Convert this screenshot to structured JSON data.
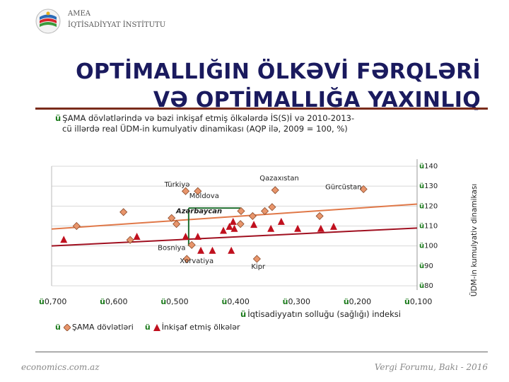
{
  "header": {
    "org_line1": "AMEA",
    "org_line2": "İQTİSADİYYAT İNSTİTUTU"
  },
  "title": {
    "line1": "OPTİMALLIĞIN ÖLKƏVİ FƏRQLƏRİ",
    "line2": "VƏ OPTİMALLIĞA YAXINLIQ"
  },
  "subtitle": {
    "check": "ü",
    "line1": "ŞAMA dövlətlərində və bəzi inkişaf etmiş ölkələrdə İS(S)İ və 2010-2013-",
    "line2": "cü illərdə real ÜDM-in kumulyativ dinamikası (AQP ilə, 2009 = 100, %)"
  },
  "colors": {
    "shama": "#e8956b",
    "shama_border": "#8a4a2a",
    "developed": "#c0101e",
    "trend_shama": "#e07848",
    "trend_developed": "#a01020",
    "guide": "#1e6e2e",
    "grid": "#d8d8d8",
    "check": "#1a7a1a"
  },
  "chart_data": {
    "type": "scatter",
    "xlabel": "İqtisadiyyatın solluğu (sağlığı) indeksi",
    "ylabel": "ÜDM-in kumulyativ dinamikası",
    "x_reversed": true,
    "xlim": [
      0.1,
      0.7
    ],
    "ylim": [
      80,
      140
    ],
    "x_ticks": [
      0.7,
      0.6,
      0.5,
      0.4,
      0.3,
      0.2,
      0.1
    ],
    "x_tick_labels": [
      "0,700",
      "0,600",
      "0,500",
      "0,400",
      "0,300",
      "0,200",
      "0,100"
    ],
    "y_ticks": [
      80,
      90,
      100,
      110,
      120,
      130,
      140
    ],
    "y_tick_labels": [
      "80",
      "90",
      "100",
      "110",
      "120",
      "130",
      "140"
    ],
    "tick_check": "ü",
    "series": [
      {
        "name": "ŞAMA dövlətləri",
        "marker": "diamond",
        "points": [
          {
            "x": 0.48,
            "y": 127.5,
            "label": "Türkiyə"
          },
          {
            "x": 0.46,
            "y": 127.5,
            "label": "Moldova"
          },
          {
            "x": 0.333,
            "y": 128.0,
            "label": "Qazaxıstan"
          },
          {
            "x": 0.188,
            "y": 128.5,
            "label": "Gürcüstan"
          },
          {
            "x": 0.389,
            "y": 117.5,
            "label": "Azərbaycan"
          },
          {
            "x": 0.47,
            "y": 100.5,
            "label": "Bosniya"
          },
          {
            "x": 0.478,
            "y": 93.5,
            "label": "Xorvatiya"
          },
          {
            "x": 0.363,
            "y": 93.5,
            "label": "Kipr"
          },
          {
            "x": 0.582,
            "y": 117.0,
            "label": ""
          },
          {
            "x": 0.659,
            "y": 110.0,
            "label": ""
          },
          {
            "x": 0.571,
            "y": 103.0,
            "label": ""
          },
          {
            "x": 0.503,
            "y": 114.0,
            "label": ""
          },
          {
            "x": 0.495,
            "y": 111.0,
            "label": ""
          },
          {
            "x": 0.39,
            "y": 111.0,
            "label": ""
          },
          {
            "x": 0.37,
            "y": 115.0,
            "label": ""
          },
          {
            "x": 0.35,
            "y": 117.5,
            "label": ""
          },
          {
            "x": 0.338,
            "y": 119.5,
            "label": ""
          },
          {
            "x": 0.26,
            "y": 115.0,
            "label": ""
          }
        ]
      },
      {
        "name": "İnkişaf etmiş ölkələr",
        "marker": "triangle",
        "points": [
          {
            "x": 0.68,
            "y": 103.0
          },
          {
            "x": 0.56,
            "y": 104.5
          },
          {
            "x": 0.48,
            "y": 104.5
          },
          {
            "x": 0.46,
            "y": 104.5
          },
          {
            "x": 0.455,
            "y": 97.5
          },
          {
            "x": 0.436,
            "y": 97.5
          },
          {
            "x": 0.418,
            "y": 107.5
          },
          {
            "x": 0.408,
            "y": 109.5
          },
          {
            "x": 0.402,
            "y": 112.0
          },
          {
            "x": 0.4,
            "y": 108.5
          },
          {
            "x": 0.368,
            "y": 110.5
          },
          {
            "x": 0.34,
            "y": 108.5
          },
          {
            "x": 0.323,
            "y": 112.0
          },
          {
            "x": 0.296,
            "y": 108.5
          },
          {
            "x": 0.258,
            "y": 108.5
          },
          {
            "x": 0.237,
            "y": 109.5
          },
          {
            "x": 0.405,
            "y": 97.5
          }
        ]
      }
    ],
    "trendlines": [
      {
        "series": "ŞAMA dövlətləri",
        "x": [
          0.7,
          0.1
        ],
        "y": [
          108.5,
          121.0
        ]
      },
      {
        "series": "İnkişaf etmiş ölkələr",
        "x": [
          0.7,
          0.1
        ],
        "y": [
          100.0,
          109.0
        ]
      }
    ],
    "guide_lines": {
      "vertical_x": 0.475,
      "vertical_y_range": [
        100.0,
        119.0
      ],
      "horizontal_y": 119.0,
      "horizontal_x_range": [
        0.475,
        0.39
      ]
    }
  },
  "legend": {
    "shama": "ŞAMA dövlətləri",
    "developed": "İnkişaf etmiş ölkələr"
  },
  "footer": {
    "left": "economics.com.az",
    "right": "Vergi Forumu, Bakı - 2016"
  }
}
